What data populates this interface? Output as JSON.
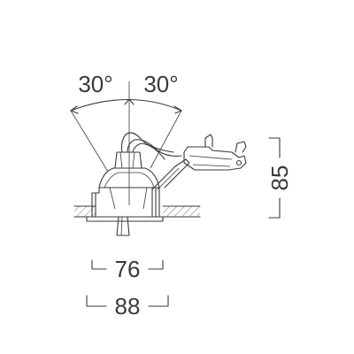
{
  "drawing": {
    "angle_left": "30°",
    "angle_right": "30°",
    "height": "85",
    "inner_width": "76",
    "outer_width": "88"
  }
}
